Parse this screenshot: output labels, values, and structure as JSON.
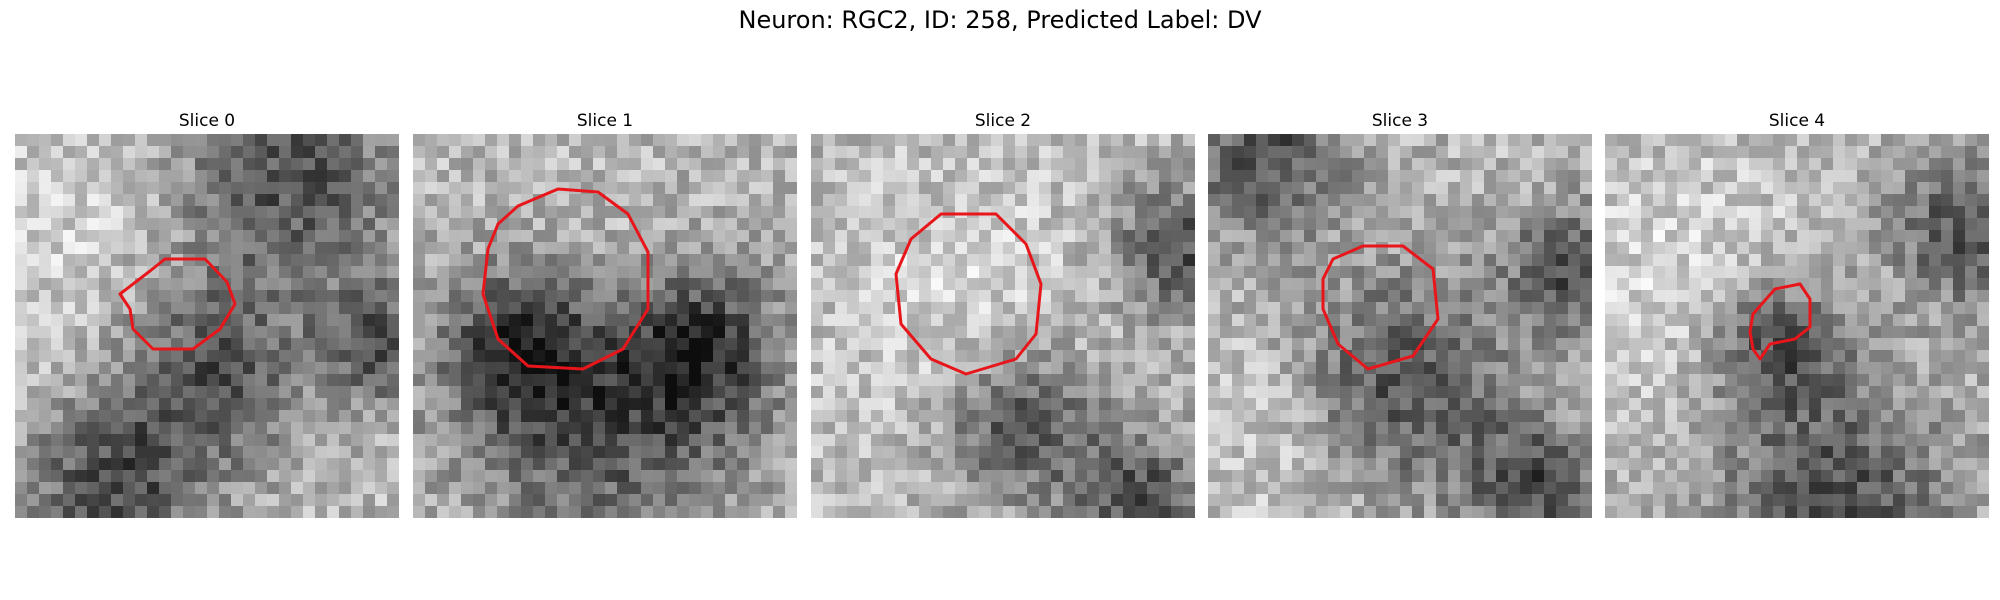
{
  "figure": {
    "title": "Neuron: RGC2, ID: 258, Predicted Label: DV"
  },
  "panels": [
    {
      "title": "Slice 0",
      "seed": 11,
      "darkBlobs": [
        [
          0.7,
          0.12,
          0.22
        ],
        [
          0.5,
          0.62,
          0.18
        ],
        [
          0.25,
          0.92,
          0.16
        ],
        [
          0.95,
          0.55,
          0.1
        ]
      ],
      "lightBlobs": [
        [
          0.25,
          0.3,
          0.3
        ]
      ]
    },
    {
      "title": "Slice 1",
      "seed": 23,
      "darkBlobs": [
        [
          0.5,
          0.72,
          0.26
        ],
        [
          0.28,
          0.55,
          0.14
        ],
        [
          0.75,
          0.55,
          0.14
        ]
      ],
      "lightBlobs": [
        [
          0.5,
          0.42,
          0.18
        ]
      ]
    },
    {
      "title": "Slice 2",
      "seed": 37,
      "darkBlobs": [
        [
          0.95,
          0.3,
          0.12
        ],
        [
          0.85,
          0.95,
          0.12
        ],
        [
          0.55,
          0.75,
          0.14
        ]
      ],
      "lightBlobs": [
        [
          0.4,
          0.45,
          0.25
        ]
      ]
    },
    {
      "title": "Slice 3",
      "seed": 41,
      "darkBlobs": [
        [
          0.5,
          0.65,
          0.2
        ],
        [
          0.15,
          0.05,
          0.15
        ],
        [
          0.85,
          0.92,
          0.12
        ],
        [
          0.95,
          0.35,
          0.12
        ]
      ],
      "lightBlobs": [
        [
          0.2,
          0.75,
          0.18
        ]
      ]
    },
    {
      "title": "Slice 4",
      "seed": 53,
      "darkBlobs": [
        [
          0.6,
          0.95,
          0.22
        ],
        [
          0.95,
          0.25,
          0.14
        ],
        [
          0.45,
          0.55,
          0.12
        ]
      ],
      "lightBlobs": [
        [
          0.2,
          0.4,
          0.25
        ]
      ]
    }
  ],
  "contour": {
    "color": "#e8161b"
  },
  "colors": {
    "background": "#ffffff",
    "text": "#000000"
  }
}
